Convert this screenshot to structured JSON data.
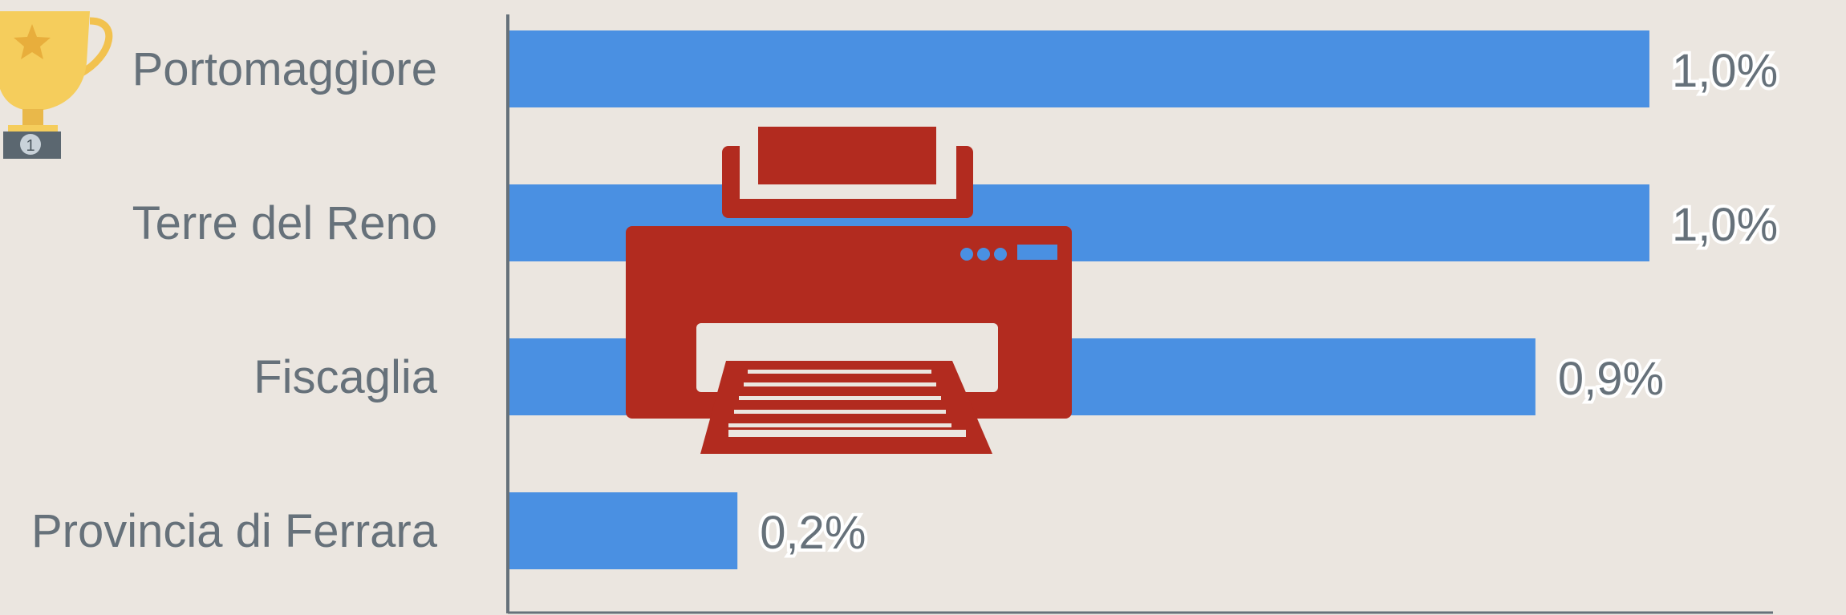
{
  "chart_data": {
    "type": "bar",
    "orientation": "horizontal",
    "title": "",
    "xlabel": "",
    "ylabel": "",
    "categories": [
      "Portomaggiore",
      "Terre del Reno",
      "Fiscaglia",
      "Provincia di Ferrara"
    ],
    "values": [
      1.0,
      1.0,
      0.9,
      0.2
    ],
    "value_labels": [
      "1,0%",
      "1,0%",
      "0,9%",
      "0,2%"
    ],
    "xlim": [
      0,
      1.05
    ],
    "grid": false,
    "legend": "none",
    "colors": {
      "bar": "#4a90e2",
      "axis": "#66717a",
      "label": "#66717a",
      "background": "#ebe6e0"
    },
    "decorations": {
      "first_place_marker": "trophy-icon",
      "overlay": "printer-icon",
      "overlay_color": "#b22b1f"
    }
  }
}
